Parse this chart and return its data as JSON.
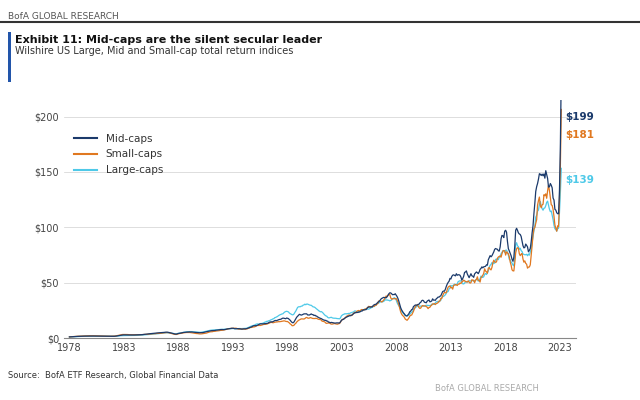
{
  "title_bold": "Exhibit 11: Mid-caps are the silent secular leader",
  "title_sub": "Wilshire US Large, Mid and Small-cap total return indices",
  "header": "BofA GLOBAL RESEARCH",
  "footer": "BofA GLOBAL RESEARCH",
  "source": "Source:  BofA ETF Research, Global Financial Data",
  "legend": [
    "Mid-caps",
    "Small-caps",
    "Large-caps"
  ],
  "colors": {
    "mid": "#1b3a6b",
    "small": "#e07820",
    "large": "#4ec9e8"
  },
  "end_labels": {
    "mid": "$199",
    "small": "$181",
    "large": "$139"
  },
  "ylim": [
    0,
    215
  ],
  "yticks": [
    0,
    50,
    100,
    150,
    200
  ],
  "ytick_labels": [
    "$0",
    "$50",
    "$100",
    "$150",
    "$200"
  ],
  "xticks": [
    1978,
    1983,
    1988,
    1993,
    1998,
    2003,
    2008,
    2013,
    2018,
    2023
  ],
  "bg_color": "#ffffff",
  "grid_color": "#d0d0d0",
  "line_width": 0.9
}
